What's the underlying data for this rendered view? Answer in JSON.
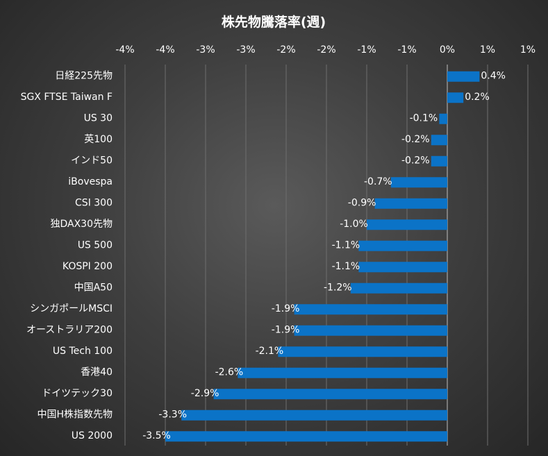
{
  "chart_data": {
    "type": "bar",
    "orientation": "horizontal",
    "title": "株先物騰落率(週)",
    "tick_labels": [
      "-4%",
      "-4%",
      "-3%",
      "-3%",
      "-2%",
      "-2%",
      "-1%",
      "-1%",
      "0%",
      "1%",
      "1%"
    ],
    "xlim": [
      -0.04,
      0.01
    ],
    "grid": true,
    "categories": [
      "日経225先物",
      "SGX FTSE Taiwan F",
      "US 30",
      "英100",
      "インド50",
      "iBovespa",
      "CSI 300",
      "独DAX30先物",
      "US 500",
      "KOSPI 200",
      "中国A50",
      "シンガポールMSCI",
      "オーストラリア200",
      "US Tech 100",
      "香港40",
      "ドイツテック30",
      "中国H株指数先物",
      "US 2000"
    ],
    "values": [
      0.004,
      0.002,
      -0.001,
      -0.002,
      -0.002,
      -0.007,
      -0.009,
      -0.01,
      -0.011,
      -0.011,
      -0.012,
      -0.019,
      -0.019,
      -0.021,
      -0.026,
      -0.029,
      -0.033,
      -0.035
    ],
    "data_labels": [
      "0.4%",
      "0.2%",
      "-0.1%",
      "-0.2%",
      "-0.2%",
      "-0.7%",
      "-0.9%",
      "-1.0%",
      "-1.1%",
      "-1.1%",
      "-1.2%",
      "-1.9%",
      "-1.9%",
      "-2.1%",
      "-2.6%",
      "-2.9%",
      "-3.3%",
      "-3.5%"
    ],
    "colors": {
      "bar": "#0b73c7"
    }
  }
}
